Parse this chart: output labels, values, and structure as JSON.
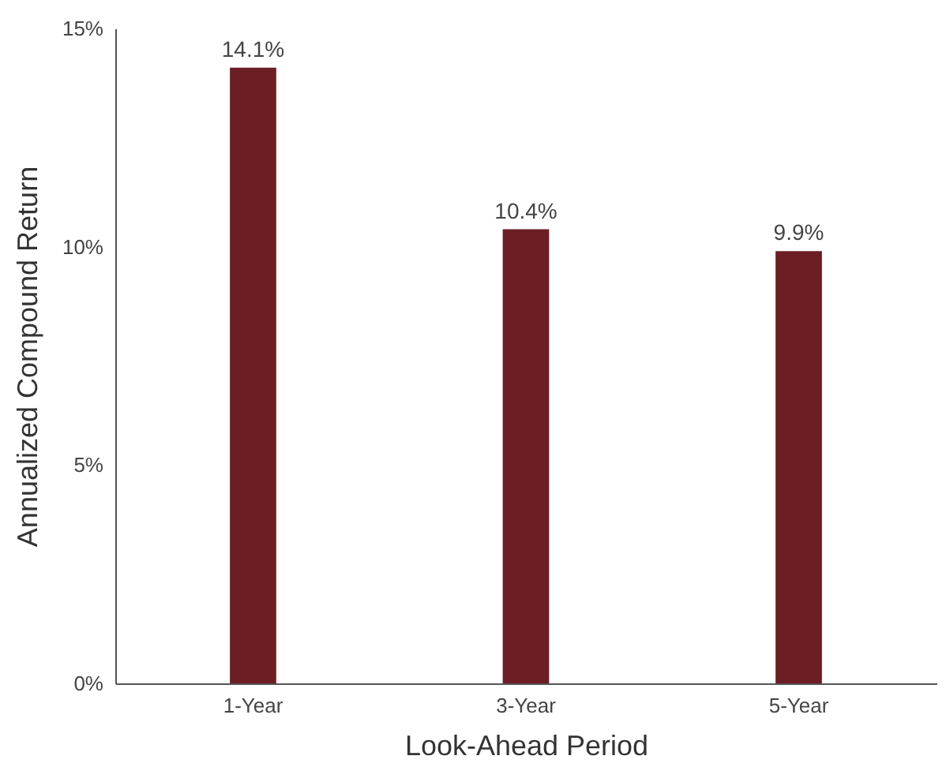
{
  "chart_data": {
    "type": "bar",
    "xlabel": "Look-Ahead Period",
    "ylabel": "Annualized Compound Return",
    "categories": [
      "1-Year",
      "3-Year",
      "5-Year"
    ],
    "values": [
      14.1,
      10.4,
      9.9
    ],
    "value_labels": [
      "14.1%",
      "10.4%",
      "9.9%"
    ],
    "color": "#6b1f24",
    "ylim": [
      0,
      15
    ],
    "yticks": [
      {
        "value": 0,
        "label": "0%"
      },
      {
        "value": 5,
        "label": "5%"
      },
      {
        "value": 10,
        "label": "10%"
      },
      {
        "value": 15,
        "label": "15%"
      }
    ],
    "grid": false
  }
}
